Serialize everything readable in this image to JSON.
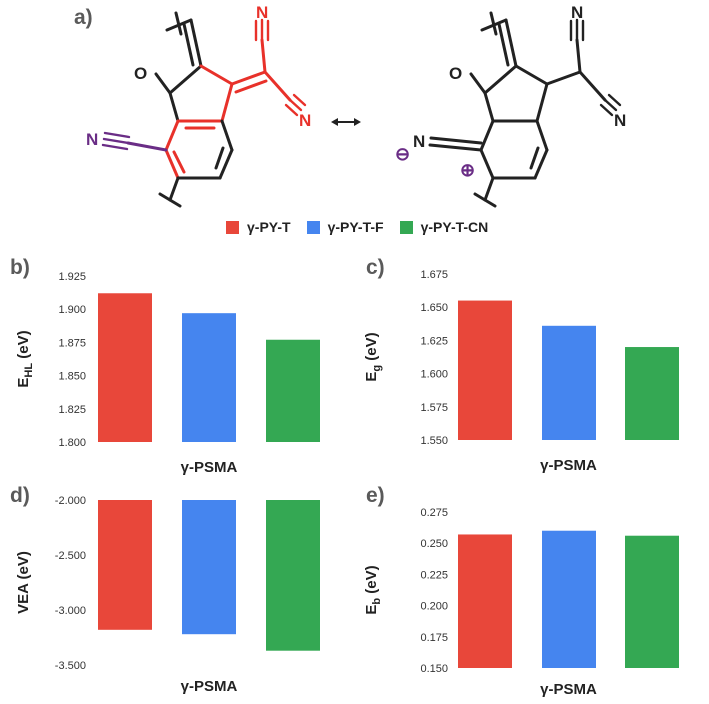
{
  "panels": {
    "a": "a)",
    "b": "b)",
    "c": "c)",
    "d": "d)",
    "e": "e)"
  },
  "molecule": {
    "atoms": {
      "o1": "O",
      "o2": "O",
      "n1": "N",
      "n2": "N",
      "n3": "N",
      "n4": "N",
      "n5": "N",
      "n6": "N"
    },
    "charges": {
      "minus": "⊖",
      "plus": "⊕"
    },
    "resonance_arrow": "↔"
  },
  "legend": [
    {
      "label": "γ-PY-T",
      "color": "#e8473a"
    },
    {
      "label": "γ-PY-T-F",
      "color": "#4585ef"
    },
    {
      "label": "γ-PY-T-CN",
      "color": "#34a853"
    }
  ],
  "chart_data": [
    {
      "panel": "b",
      "type": "bar",
      "categories": [
        "γ-PSMA"
      ],
      "series": [
        {
          "name": "γ-PY-T",
          "values": [
            1.912
          ]
        },
        {
          "name": "γ-PY-T-F",
          "values": [
            1.897
          ]
        },
        {
          "name": "γ-PY-T-CN",
          "values": [
            1.877
          ]
        }
      ],
      "xlabel": "γ-PSMA",
      "ylabel": "E",
      "ylabel_sub": "HL",
      "ylabel_unit": " (eV)",
      "ylim": [
        1.8,
        1.925
      ],
      "yticks": [
        "1.925",
        "1.900",
        "1.875",
        "1.850",
        "1.825",
        "1.800"
      ],
      "baseline": 1.8
    },
    {
      "panel": "c",
      "type": "bar",
      "categories": [
        "γ-PSMA"
      ],
      "series": [
        {
          "name": "γ-PY-T",
          "values": [
            1.655
          ]
        },
        {
          "name": "γ-PY-T-F",
          "values": [
            1.636
          ]
        },
        {
          "name": "γ-PY-T-CN",
          "values": [
            1.62
          ]
        }
      ],
      "xlabel": "γ-PSMA",
      "ylabel": "E",
      "ylabel_sub": "g",
      "ylabel_unit": " (eV)",
      "ylim": [
        1.55,
        1.675
      ],
      "yticks": [
        "1.675",
        "1.650",
        "1.625",
        "1.600",
        "1.575",
        "1.550"
      ],
      "baseline": 1.55
    },
    {
      "panel": "d",
      "type": "bar",
      "categories": [
        "γ-PSMA"
      ],
      "series": [
        {
          "name": "γ-PY-T",
          "values": [
            -3.18
          ]
        },
        {
          "name": "γ-PY-T-F",
          "values": [
            -3.22
          ]
        },
        {
          "name": "γ-PY-T-CN",
          "values": [
            -3.37
          ]
        }
      ],
      "xlabel": "γ-PSMA",
      "ylabel": "VEA",
      "ylabel_sub": "",
      "ylabel_unit": " (eV)",
      "ylim": [
        -3.5,
        -2.0
      ],
      "yticks": [
        "-2.000",
        "-2.500",
        "-3.000",
        "-3.500"
      ],
      "baseline": -2.0
    },
    {
      "panel": "e",
      "type": "bar",
      "categories": [
        "γ-PSMA"
      ],
      "series": [
        {
          "name": "γ-PY-T",
          "values": [
            0.257
          ]
        },
        {
          "name": "γ-PY-T-F",
          "values": [
            0.26
          ]
        },
        {
          "name": "γ-PY-T-CN",
          "values": [
            0.256
          ]
        }
      ],
      "xlabel": "γ-PSMA",
      "ylabel": "E",
      "ylabel_sub": "b",
      "ylabel_unit": " (eV)",
      "ylim": [
        0.15,
        0.275
      ],
      "yticks": [
        "0.275",
        "0.250",
        "0.225",
        "0.200",
        "0.175",
        "0.150"
      ],
      "baseline": 0.15
    }
  ]
}
